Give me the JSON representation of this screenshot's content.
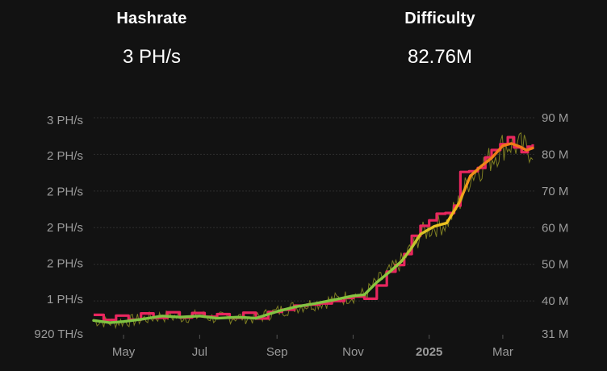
{
  "stats": {
    "hashrate": {
      "title": "Hashrate",
      "value": "3 PH/s"
    },
    "difficulty": {
      "title": "Difficulty",
      "value": "82.76M"
    }
  },
  "colors": {
    "background": "#121212",
    "grid": "#2e2e2e",
    "tick": "#9b9b9b",
    "difficulty_line": "#e8265e",
    "hashrate_raw": "#8a8a24",
    "hashrate_ma_low": "#7cc142",
    "hashrate_ma_mid": "#f2c21e",
    "hashrate_ma_high": "#f07a18"
  },
  "chart_data": {
    "type": "line",
    "x_ticks": [
      {
        "label": "May",
        "date": "2024-05-01",
        "bold": false
      },
      {
        "label": "Jul",
        "date": "2024-07-01",
        "bold": false
      },
      {
        "label": "Sep",
        "date": "2024-09-01",
        "bold": false
      },
      {
        "label": "Nov",
        "date": "2024-11-01",
        "bold": false
      },
      {
        "label": "2025",
        "date": "2025-01-01",
        "bold": true
      },
      {
        "label": "Mar",
        "date": "2025-03-01",
        "bold": false
      }
    ],
    "xlim": [
      "2024-04-07",
      "2025-03-25"
    ],
    "left_axis": {
      "unit": "TH/s",
      "ylim": [
        920,
        2850
      ],
      "ticks": [
        {
          "label": "920 TH/s",
          "value": 920
        },
        {
          "label": "1 PH/s",
          "value": 1230
        },
        {
          "label": "2 PH/s",
          "value": 1550
        },
        {
          "label": "2 PH/s",
          "value": 1870
        },
        {
          "label": "2 PH/s",
          "value": 2190
        },
        {
          "label": "2 PH/s",
          "value": 2510
        },
        {
          "label": "3 PH/s",
          "value": 2830
        }
      ]
    },
    "right_axis": {
      "unit": "M",
      "ylim": [
        31,
        90
      ],
      "ticks": [
        {
          "label": "31 M",
          "value": 31
        },
        {
          "label": "40 M",
          "value": 40
        },
        {
          "label": "50 M",
          "value": 50
        },
        {
          "label": "60 M",
          "value": 60
        },
        {
          "label": "70 M",
          "value": 70
        },
        {
          "label": "80 M",
          "value": 80
        },
        {
          "label": "90 M",
          "value": 90
        }
      ]
    },
    "grid": true,
    "series": [
      {
        "axis": "right",
        "points": [
          [
            "2024-04-07",
            36.2
          ],
          [
            "2024-04-15",
            34.8
          ],
          [
            "2024-04-25",
            36.0
          ],
          [
            "2024-05-05",
            34.9
          ],
          [
            "2024-05-15",
            36.6
          ],
          [
            "2024-05-25",
            35.4
          ],
          [
            "2024-06-05",
            36.9
          ],
          [
            "2024-06-15",
            35.5
          ],
          [
            "2024-06-25",
            36.7
          ],
          [
            "2024-07-05",
            35.7
          ],
          [
            "2024-07-15",
            36.4
          ],
          [
            "2024-07-25",
            35.4
          ],
          [
            "2024-08-05",
            36.8
          ],
          [
            "2024-08-15",
            35.2
          ],
          [
            "2024-08-25",
            37.0
          ],
          [
            "2024-09-05",
            37.6
          ],
          [
            "2024-09-15",
            38.7
          ],
          [
            "2024-09-25",
            39.0
          ],
          [
            "2024-10-05",
            39.3
          ],
          [
            "2024-10-15",
            40.0
          ],
          [
            "2024-10-25",
            40.8
          ],
          [
            "2024-11-01",
            41.2
          ],
          [
            "2024-11-10",
            40.6
          ],
          [
            "2024-11-20",
            44.2
          ],
          [
            "2024-11-28",
            48.0
          ],
          [
            "2024-12-05",
            49.8
          ],
          [
            "2024-12-12",
            52.8
          ],
          [
            "2024-12-18",
            57.8
          ],
          [
            "2024-12-25",
            60.5
          ],
          [
            "2025-01-01",
            62.0
          ],
          [
            "2025-01-07",
            63.8
          ],
          [
            "2025-01-14",
            64.0
          ],
          [
            "2025-01-21",
            66.0
          ],
          [
            "2025-01-26",
            75.2
          ],
          [
            "2025-02-02",
            75.4
          ],
          [
            "2025-02-09",
            76.3
          ],
          [
            "2025-02-15",
            79.2
          ],
          [
            "2025-02-20",
            81.2
          ],
          [
            "2025-02-27",
            82.8
          ],
          [
            "2025-03-05",
            84.7
          ],
          [
            "2025-03-10",
            81.9
          ],
          [
            "2025-03-16",
            80.6
          ],
          [
            "2025-03-21",
            82.1
          ],
          [
            "2025-03-25",
            82.76
          ]
        ]
      },
      {
        "axis": "left",
        "points": [
          [
            "2024-04-07",
            1040
          ],
          [
            "2024-04-20",
            1020
          ],
          [
            "2024-05-01",
            1030
          ],
          [
            "2024-05-15",
            1050
          ],
          [
            "2024-06-01",
            1080
          ],
          [
            "2024-06-15",
            1070
          ],
          [
            "2024-07-01",
            1080
          ],
          [
            "2024-07-15",
            1060
          ],
          [
            "2024-08-01",
            1070
          ],
          [
            "2024-08-15",
            1060
          ],
          [
            "2024-09-01",
            1120
          ],
          [
            "2024-09-15",
            1160
          ],
          [
            "2024-10-01",
            1190
          ],
          [
            "2024-10-15",
            1220
          ],
          [
            "2024-11-01",
            1260
          ],
          [
            "2024-11-10",
            1270
          ],
          [
            "2024-11-20",
            1380
          ],
          [
            "2024-12-01",
            1480
          ],
          [
            "2024-12-10",
            1570
          ],
          [
            "2024-12-18",
            1690
          ],
          [
            "2024-12-25",
            1810
          ],
          [
            "2025-01-05",
            1880
          ],
          [
            "2025-01-15",
            1910
          ],
          [
            "2025-01-25",
            2090
          ],
          [
            "2025-02-03",
            2330
          ],
          [
            "2025-02-12",
            2420
          ],
          [
            "2025-02-20",
            2490
          ],
          [
            "2025-03-01",
            2600
          ],
          [
            "2025-03-08",
            2620
          ],
          [
            "2025-03-15",
            2590
          ],
          [
            "2025-03-20",
            2560
          ],
          [
            "2025-03-25",
            2580
          ]
        ]
      }
    ]
  }
}
